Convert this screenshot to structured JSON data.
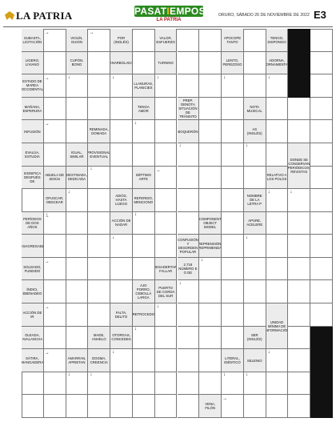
{
  "header": {
    "newspaper": "LA PATRIA",
    "section_part1": "PASAT",
    "section_part2": "I",
    "section_part3": "EMPOS",
    "section_sub": "LA PATRIA",
    "date": "ORURO, SÁBADO 26 DE NOVIEMBRE DE 2022",
    "page": "E3"
  },
  "grid": {
    "cols": 14,
    "rows": 17
  },
  "clues": [
    {
      "c": 0,
      "r": 0,
      "h": 1,
      "text": "SUBASTA, LICITACIÓN",
      "arrow": "→"
    },
    {
      "c": 0,
      "r": 1,
      "h": 1,
      "text": "LIGERO, LIVIANO",
      "arrow": "↓"
    },
    {
      "c": 2,
      "r": 0,
      "h": 1,
      "text": "VIOLÍN, GUION",
      "arrow": "→"
    },
    {
      "c": 2,
      "r": 1,
      "h": 1,
      "text": "CUPÓN, BONO",
      "arrow": "↓"
    },
    {
      "c": 4,
      "r": 0,
      "h": 1,
      "text": "POR (INGLÉS)",
      "arrow": "↓"
    },
    {
      "c": 4,
      "r": 1,
      "h": 1,
      "text": "ENARBOLADA",
      "arrow": "↓"
    },
    {
      "c": 6,
      "r": 0,
      "h": 1,
      "text": "VALOR, ESFUERZO",
      "arrow": "↓"
    },
    {
      "c": 6,
      "r": 1,
      "h": 1,
      "text": "TURNINO",
      "arrow": "↓"
    },
    {
      "c": 9,
      "r": 0,
      "h": 1,
      "text": "APOCOPE TANTO",
      "arrow": "↓"
    },
    {
      "c": 9,
      "r": 1,
      "h": 1,
      "text": "LENTO, PEREZOSO",
      "arrow": "↓"
    },
    {
      "c": 11,
      "r": 0,
      "h": 1,
      "text": "TENGO, DISPONGO",
      "arrow": "↓"
    },
    {
      "c": 11,
      "r": 1,
      "h": 1,
      "text": "ADORNA, ORNAMENTA",
      "arrow": "↓"
    },
    {
      "c": 0,
      "r": 2,
      "h": 1,
      "text": "ESTADO DE MAREA OCCIDENTAL",
      "arrow": "→"
    },
    {
      "c": 0,
      "r": 3,
      "h": 1,
      "text": "MAÑANA, ESPERURA",
      "arrow": "↓"
    },
    {
      "c": 5,
      "r": 2,
      "h": 1,
      "text": "LLANURAS, PLANICIES",
      "arrow": "↓"
    },
    {
      "c": 5,
      "r": 3,
      "h": 1,
      "text": "TENGA AMOR",
      "arrow": "↓"
    },
    {
      "c": 7,
      "r": 3,
      "h": 1,
      "text": "PREP. DENOTA SITUACIÓN DE TRÁNSITO",
      "arrow": "↓"
    },
    {
      "c": 7,
      "r": 4,
      "h": 1,
      "text": "BOQUERÓN",
      "arrow": "↓"
    },
    {
      "c": 10,
      "r": 3,
      "h": 1,
      "text": "NOTA MUSICAL",
      "arrow": "↓"
    },
    {
      "c": 10,
      "r": 4,
      "h": 1,
      "text": "AS (INGLÉS)",
      "arrow": "↓"
    },
    {
      "c": 0,
      "r": 4,
      "h": 1,
      "text": "INFUSIÓN",
      "arrow": "→"
    },
    {
      "c": 0,
      "r": 5,
      "h": 1,
      "text": "EVALÚA, ESTUDIA",
      "arrow": "↓"
    },
    {
      "c": 3,
      "r": 4,
      "h": 1,
      "text": "REMINADA, DOMADA",
      "arrow": "↓"
    },
    {
      "c": 3,
      "r": 5,
      "h": 1,
      "text": "PROVISIONAL, EVENTUAL",
      "arrow": "↓"
    },
    {
      "c": 2,
      "r": 5,
      "h": 1,
      "text": "IGUAL, SIMILAR",
      "arrow": "↓"
    },
    {
      "c": 2,
      "r": 6,
      "h": 1,
      "text": "DESTINADA, DEDICADA",
      "arrow": "↓"
    },
    {
      "c": 12,
      "r": 5,
      "h": 2,
      "text": "DONDE SE CONSERVAN PERIÓDICOS, REVISTAS",
      "arrow": "↓"
    },
    {
      "c": 0,
      "r": 6,
      "h": 1,
      "text": "SIGNIFICA DESPUÉS DE",
      "arrow": "→"
    },
    {
      "c": 1,
      "r": 6,
      "h": 1,
      "text": "ABUELA DE JESÚS",
      "arrow": "↓"
    },
    {
      "c": 1,
      "r": 7,
      "h": 1,
      "text": "OFUSCAR, OBSCEAR",
      "arrow": "↓"
    },
    {
      "c": 5,
      "r": 6,
      "h": 1,
      "text": "SÉPTIMO ARTE",
      "arrow": "→"
    },
    {
      "c": 5,
      "r": 7,
      "h": 1,
      "text": "REFERIDO, MENCIONO",
      "arrow": "↓"
    },
    {
      "c": 11,
      "r": 6,
      "h": 1,
      "text": "RELATIVO A LOS POLOS",
      "arrow": "↓"
    },
    {
      "c": 4,
      "r": 7,
      "h": 1,
      "text": "ADIÓS, HASTA LUEGO",
      "arrow": "↓"
    },
    {
      "c": 4,
      "r": 8,
      "h": 1,
      "text": "ACCIÓN DE NADAR",
      "arrow": "↓"
    },
    {
      "c": 10,
      "r": 7,
      "h": 1,
      "text": "NOMBRE DE LA LETRA P",
      "arrow": "↓"
    },
    {
      "c": 10,
      "r": 8,
      "h": 1,
      "text": "APURE, ACELERE",
      "arrow": "↓"
    },
    {
      "c": 0,
      "r": 8,
      "h": 1,
      "text": "PERÍODOS DE DOS AÑOS",
      "arrow": "→"
    },
    {
      "c": 0,
      "r": 9,
      "h": 1,
      "text": "DESAGREGABLE",
      "arrow": "↓"
    },
    {
      "c": 8,
      "r": 8,
      "h": 1,
      "text": "COMPONENT OBJECT MODEL",
      "arrow": "↓"
    },
    {
      "c": 8,
      "r": 9,
      "h": 1,
      "text": "REPRENSIÓN, REPRIMENDA",
      "arrow": "↓"
    },
    {
      "c": 7,
      "r": 9,
      "h": 1,
      "text": "CONFUSIÓN Y DESORDEN POPULAR",
      "arrow": "↓"
    },
    {
      "c": 7,
      "r": 10,
      "h": 1,
      "text": "2,718 NÚMERO E O DE",
      "arrow": "↓"
    },
    {
      "c": 0,
      "r": 10,
      "h": 1,
      "text": "SOLDADO, FUNDIDO",
      "arrow": "→"
    },
    {
      "c": 0,
      "r": 11,
      "h": 1,
      "text": "ÍNDICI, EBENADEO",
      "arrow": "↓"
    },
    {
      "c": 6,
      "r": 10,
      "h": 1,
      "text": "DESADERTAR, FALLAR",
      "arrow": "↓"
    },
    {
      "c": 6,
      "r": 11,
      "h": 1,
      "text": "PUERTO DE CORDA DEL SUR",
      "arrow": "↓"
    },
    {
      "c": 5,
      "r": 11,
      "h": 1,
      "text": "AJO PORRO, CEBOLLA LARGA",
      "arrow": "↓"
    },
    {
      "c": 5,
      "r": 12,
      "h": 1,
      "text": "RETROCEDO",
      "arrow": "↓"
    },
    {
      "c": 0,
      "r": 12,
      "h": 1,
      "text": "ACCIÓN DE IR",
      "arrow": "→"
    },
    {
      "c": 0,
      "r": 13,
      "h": 1,
      "text": "OLEADA, AVALANCHA",
      "arrow": "↓"
    },
    {
      "c": 4,
      "r": 12,
      "h": 1,
      "text": "FALTA, DELITO",
      "arrow": "↓"
    },
    {
      "c": 4,
      "r": 13,
      "h": 1,
      "text": "OTORGAS, CONCEDES",
      "arrow": "↓"
    },
    {
      "c": 11,
      "r": 12,
      "h": 2,
      "text": "UNIDAD MÍNIMA DE INFORMACIÓN",
      "arrow": "↓"
    },
    {
      "c": 3,
      "r": 13,
      "h": 1,
      "text": "MADE, ANHELO",
      "arrow": "↓"
    },
    {
      "c": 3,
      "r": 14,
      "h": 1,
      "text": "DOGMA, CREENCIA",
      "arrow": "↓"
    },
    {
      "c": 10,
      "r": 13,
      "h": 1,
      "text": "SER (INGLÉS)",
      "arrow": "↓"
    },
    {
      "c": 10,
      "r": 14,
      "h": 1,
      "text": "SELENIO",
      "arrow": "↓"
    },
    {
      "c": 0,
      "r": 14,
      "h": 1,
      "text": "SÁTIRA, MANGADERA",
      "arrow": "→"
    },
    {
      "c": 2,
      "r": 14,
      "h": 1,
      "text": "AMARRAN, APRIETAN",
      "arrow": "↓"
    },
    {
      "c": 9,
      "r": 14,
      "h": 1,
      "text": "LITERAL, IDÉNTICO",
      "arrow": "↓"
    },
    {
      "c": 8,
      "r": 16,
      "h": 1,
      "text": "VENA, FILÓN",
      "arrow": "→"
    }
  ],
  "black_cells": [
    {
      "c": 12,
      "r": 0
    },
    {
      "c": 12,
      "r": 1
    },
    {
      "c": 12,
      "r": 2
    },
    {
      "c": 13,
      "r": 13
    },
    {
      "c": 13,
      "r": 14
    },
    {
      "c": 13,
      "r": 15
    },
    {
      "c": 13,
      "r": 16
    }
  ]
}
